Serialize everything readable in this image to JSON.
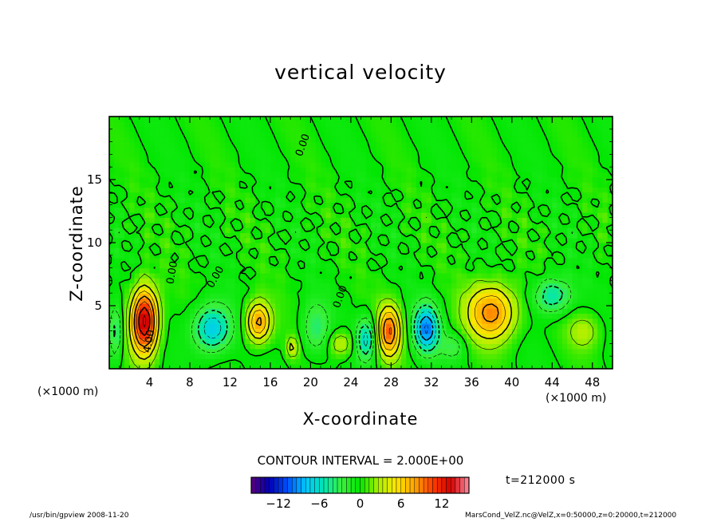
{
  "chart_data": {
    "type": "heatmap",
    "title": "vertical velocity",
    "xlabel": "X-coordinate",
    "ylabel": "Z-coordinate",
    "x_unit_label": "(×1000 m)",
    "xlim": [
      0,
      50
    ],
    "ylim": [
      0,
      20
    ],
    "x_ticks": [
      "4",
      "8",
      "12",
      "16",
      "20",
      "24",
      "28",
      "32",
      "36",
      "40",
      "44",
      "48"
    ],
    "y_ticks": [
      "5",
      "10",
      "15"
    ],
    "contour_interval_label": "CONTOUR INTERVAL = 2.000E+00",
    "time_label": "t=212000 s",
    "colorbar": {
      "range": [
        -16,
        16
      ],
      "ticks": [
        "−12",
        "−6",
        "0",
        "6",
        "12"
      ],
      "colors": [
        "#5a0078",
        "#0000b4",
        "#0050ff",
        "#00c8ff",
        "#00e6b4",
        "#3cf03c",
        "#00e600",
        "#aaf000",
        "#ffe600",
        "#ffa500",
        "#ff3c00",
        "#d20000",
        "#ff8ca0"
      ]
    },
    "contour_labels": [
      "0.00",
      "4.00"
    ],
    "features": [
      {
        "x": 3.5,
        "z": 3.8,
        "peak": 15,
        "sx": 1.3,
        "sz": 2.6
      },
      {
        "x": 14.8,
        "z": 3.7,
        "peak": 9,
        "sx": 1.2,
        "sz": 1.6
      },
      {
        "x": 27.8,
        "z": 3.0,
        "peak": 10,
        "sx": 1.1,
        "sz": 2.0
      },
      {
        "x": 38.0,
        "z": 4.5,
        "peak": 9,
        "sx": 2.4,
        "sz": 2.2
      },
      {
        "x": 10.2,
        "z": 3.2,
        "peak": -8,
        "sx": 1.8,
        "sz": 1.8
      },
      {
        "x": 25.5,
        "z": 2.4,
        "peak": -7,
        "sx": 0.9,
        "sz": 1.6
      },
      {
        "x": 31.5,
        "z": 3.2,
        "peak": -10,
        "sx": 1.2,
        "sz": 1.8
      },
      {
        "x": 44.0,
        "z": 5.8,
        "peak": -6,
        "sx": 1.8,
        "sz": 1.4
      },
      {
        "x": 20.5,
        "z": 3.2,
        "peak": -4,
        "sx": 1.3,
        "sz": 2.0
      },
      {
        "x": 0.6,
        "z": 3.0,
        "peak": -5,
        "sx": 0.7,
        "sz": 2.2
      },
      {
        "x": 23.0,
        "z": 2.0,
        "peak": 4,
        "sx": 1.2,
        "sz": 1.0
      },
      {
        "x": 18.2,
        "z": 1.7,
        "peak": 5,
        "sx": 0.5,
        "sz": 0.8
      },
      {
        "x": 47.2,
        "z": 3.0,
        "peak": 3,
        "sx": 1.6,
        "sz": 1.4
      },
      {
        "x": 34.2,
        "z": 1.8,
        "peak": -3,
        "sx": 1.2,
        "sz": 1.0
      }
    ]
  },
  "footer": {
    "left": "/usr/bin/gpview   2008-11-20",
    "right": "MarsCond_VelZ.nc@VelZ,x=0:50000,z=0:20000,t=212000"
  }
}
